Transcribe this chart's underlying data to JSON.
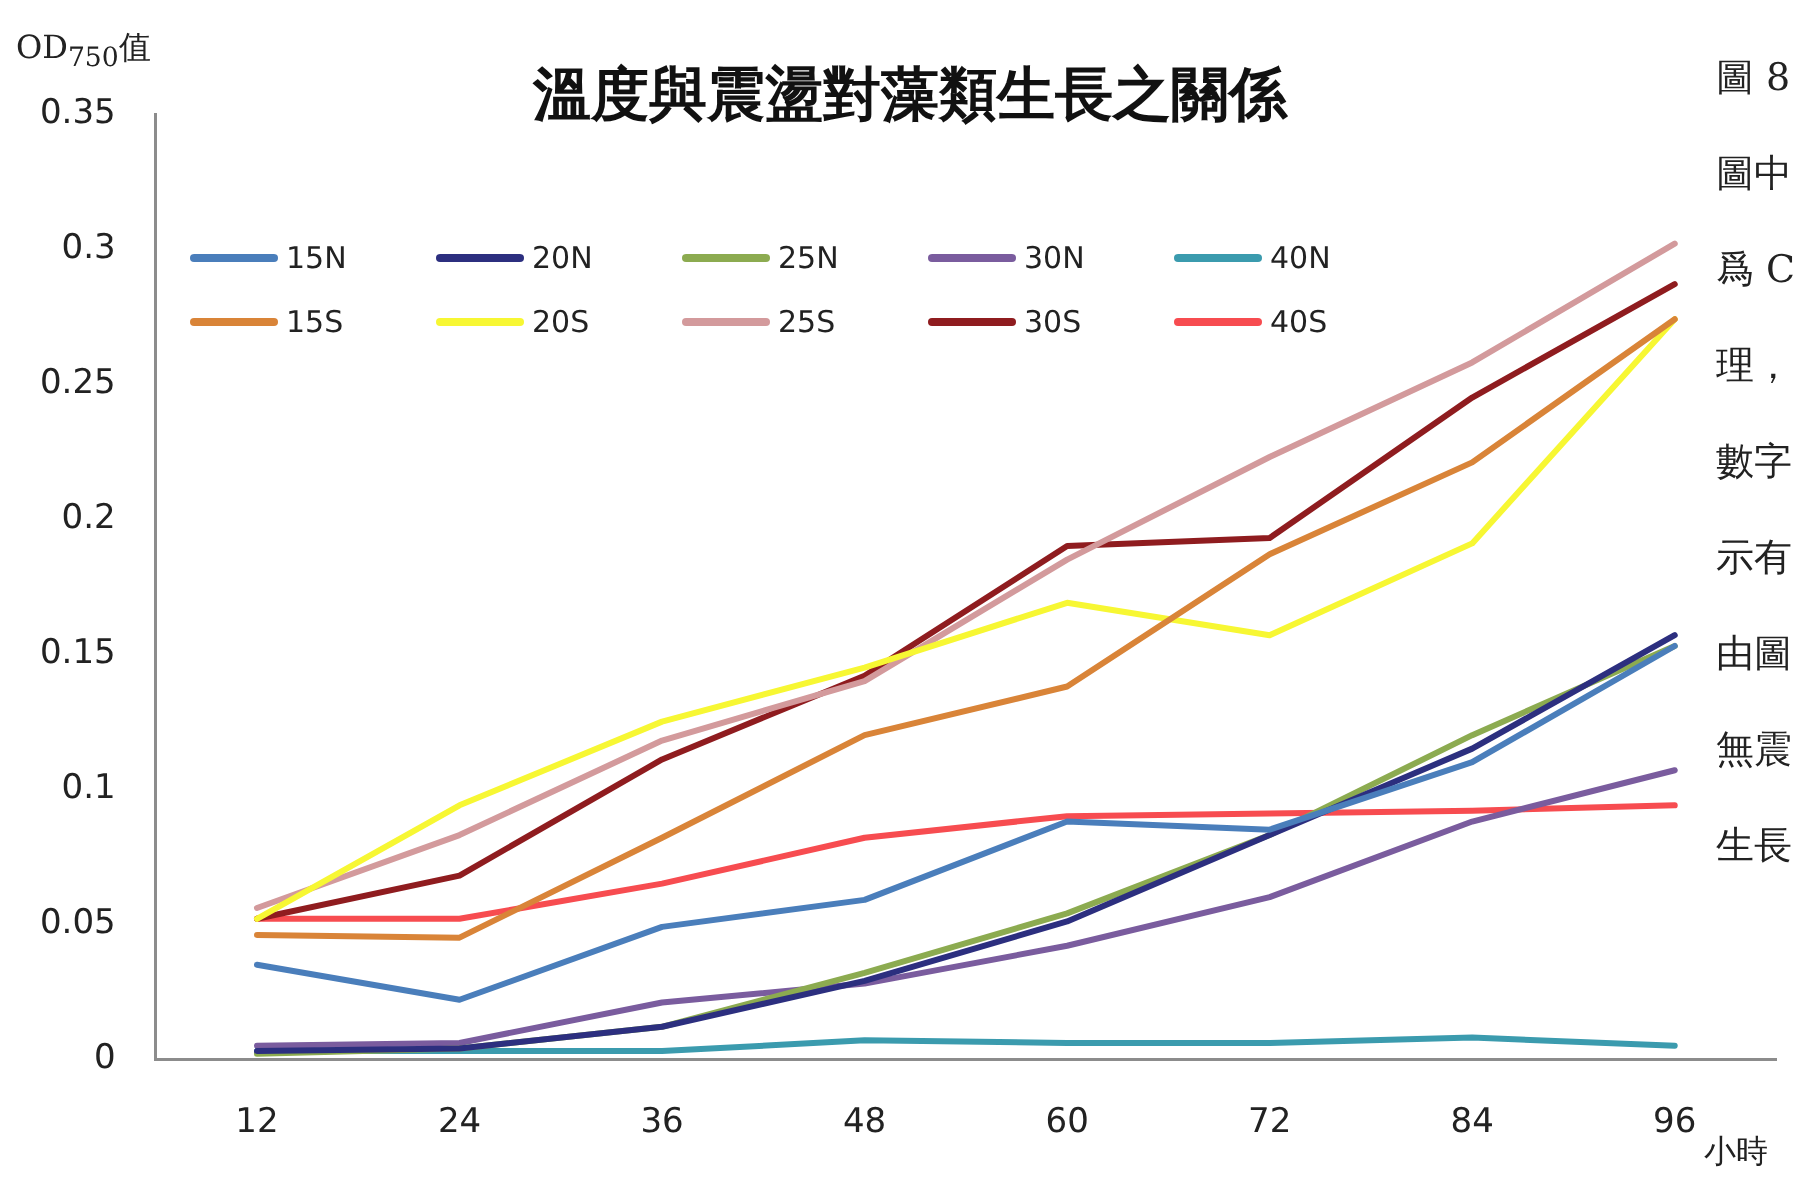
{
  "chart_data": {
    "type": "line",
    "title": "溫度與震盪對藻類生長之關係",
    "ylabel": "OD$_{750}$值",
    "xlabel": "小時",
    "categories": [
      "12",
      "24",
      "36",
      "48",
      "60",
      "72",
      "84",
      "96"
    ],
    "ylim": [
      0,
      0.35
    ],
    "yticks": [
      0,
      0.05,
      0.1,
      0.15,
      0.2,
      0.25,
      0.3,
      0.35
    ],
    "grid": false,
    "legend": "top left",
    "marker": "none",
    "line_style": "solid",
    "series": [
      {
        "name": "15N",
        "color": "#4a7ebb",
        "values": [
          0.035,
          0.022,
          0.049,
          0.059,
          0.088,
          0.085,
          0.11,
          0.153
        ]
      },
      {
        "name": "20N",
        "color": "#2c2f7f",
        "values": [
          0.003,
          0.004,
          0.012,
          0.029,
          0.051,
          0.083,
          0.115,
          0.157
        ]
      },
      {
        "name": "25N",
        "color": "#8cab50",
        "values": [
          0.002,
          0.004,
          0.012,
          0.032,
          0.054,
          0.083,
          0.12,
          0.153
        ]
      },
      {
        "name": "30N",
        "color": "#7a5c9e",
        "values": [
          0.005,
          0.006,
          0.021,
          0.028,
          0.042,
          0.06,
          0.088,
          0.107
        ]
      },
      {
        "name": "40N",
        "color": "#3b9bae",
        "values": [
          0.003,
          0.003,
          0.003,
          0.007,
          0.006,
          0.006,
          0.008,
          0.005
        ]
      },
      {
        "name": "15S",
        "color": "#d98438",
        "values": [
          0.046,
          0.045,
          0.082,
          0.12,
          0.138,
          0.187,
          0.221,
          0.274
        ]
      },
      {
        "name": "20S",
        "color": "#f7f733",
        "values": [
          0.052,
          0.094,
          0.125,
          0.145,
          0.169,
          0.157,
          0.191,
          0.274
        ]
      },
      {
        "name": "25S",
        "color": "#d39a9c",
        "values": [
          0.056,
          0.083,
          0.118,
          0.14,
          0.185,
          0.223,
          0.258,
          0.302
        ]
      },
      {
        "name": "30S",
        "color": "#8f1c1f",
        "values": [
          0.052,
          0.068,
          0.111,
          0.142,
          0.19,
          0.193,
          0.245,
          0.287
        ]
      },
      {
        "name": "40S",
        "color": "#f74c50",
        "values": [
          0.052,
          0.052,
          0.065,
          0.082,
          0.09,
          0.091,
          0.092,
          0.094
        ]
      }
    ],
    "annotations": [
      "圖 8",
      "圖中",
      "爲 C",
      "理，",
      "數字",
      "示有",
      "由圖",
      "無震",
      "生長"
    ]
  }
}
